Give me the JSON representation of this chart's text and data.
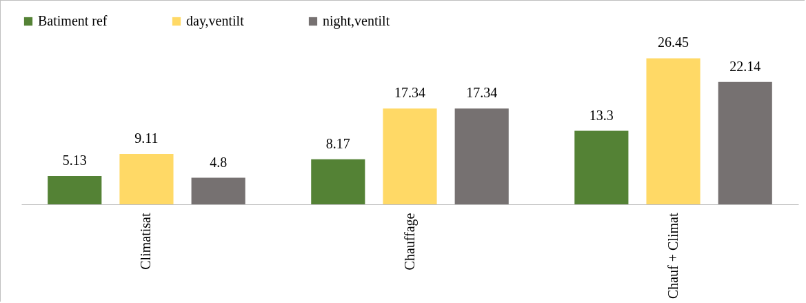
{
  "chart_data": {
    "type": "bar",
    "categories": [
      "Climatisat",
      "Chauffage",
      "Chauf + Climat"
    ],
    "series": [
      {
        "name": "Batiment ref",
        "color": "#548235",
        "values": [
          5.13,
          8.17,
          13.3
        ]
      },
      {
        "name": "day,ventilt",
        "color": "#ffd966",
        "values": [
          9.11,
          17.34,
          26.45
        ]
      },
      {
        "name": "night,ventilt",
        "color": "#767171",
        "values": [
          4.8,
          17.34,
          22.14
        ]
      }
    ],
    "data_labels": true,
    "legend": "top",
    "grid": false
  }
}
